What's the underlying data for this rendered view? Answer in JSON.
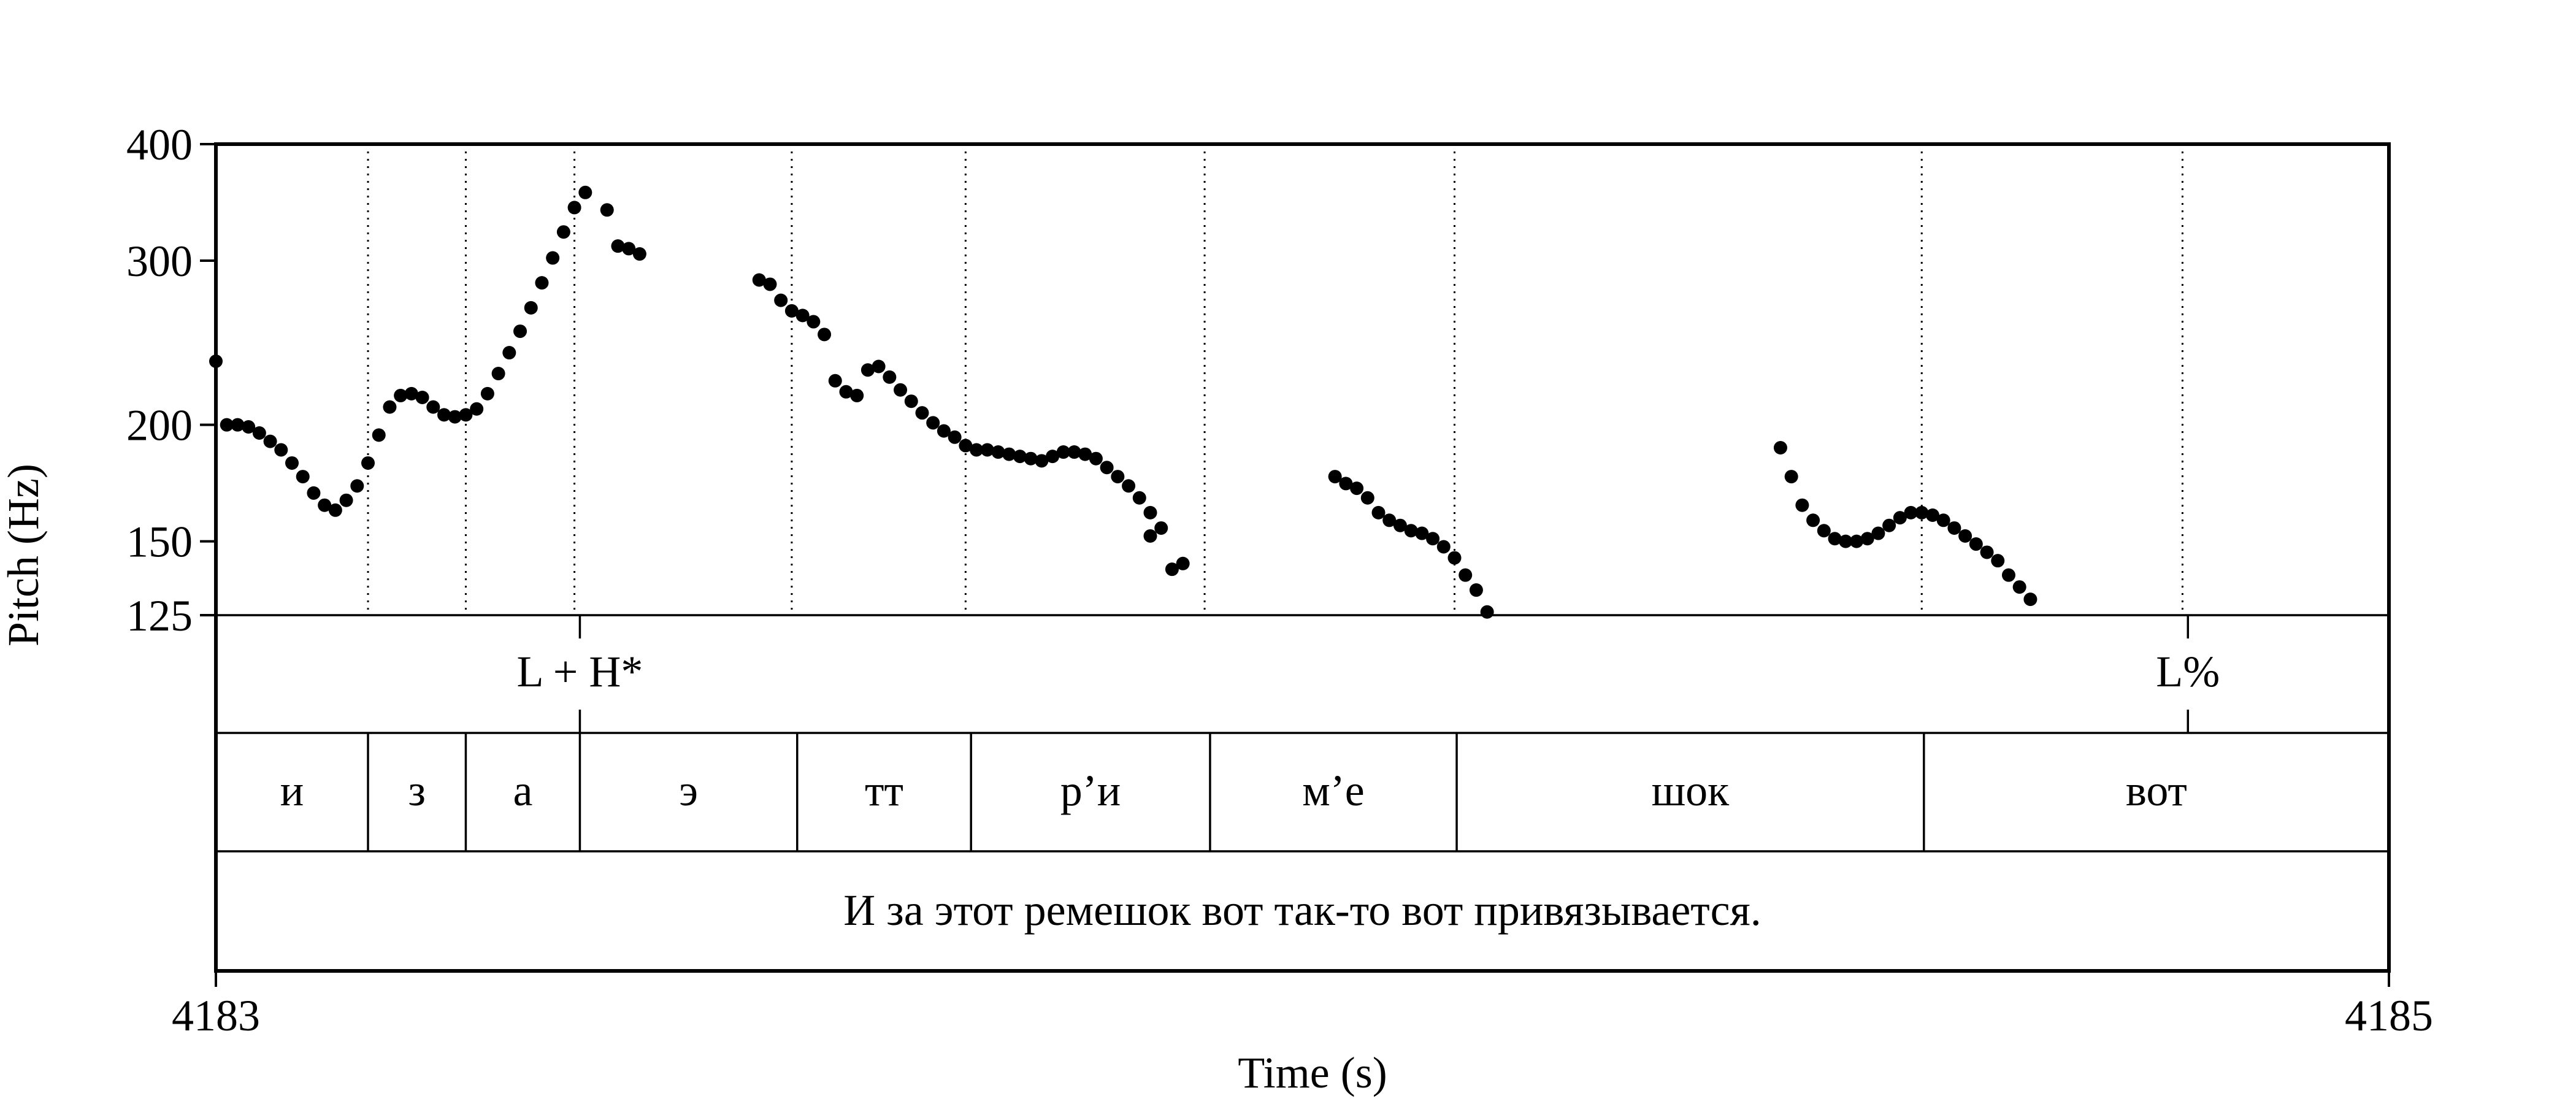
{
  "chart_data": {
    "type": "scatter",
    "ylabel": "Pitch (Hz)",
    "xlabel": "Time (s)",
    "xlim": [
      4183,
      4185
    ],
    "ylim": [
      125,
      400
    ],
    "y_scale": "log",
    "y_ticks": [
      125,
      150,
      200,
      300,
      400
    ],
    "x_ticks": [
      4183,
      4185
    ],
    "grid": false,
    "pitch_segments": [
      [
        [
          4183.0,
          234
        ],
        [
          4183.01,
          200
        ],
        [
          4183.02,
          200
        ],
        [
          4183.03,
          199
        ],
        [
          4183.04,
          196
        ],
        [
          4183.05,
          192
        ],
        [
          4183.06,
          188
        ],
        [
          4183.07,
          182
        ],
        [
          4183.08,
          176
        ],
        [
          4183.09,
          169
        ],
        [
          4183.1,
          164
        ],
        [
          4183.11,
          162
        ],
        [
          4183.12,
          166
        ],
        [
          4183.13,
          172
        ],
        [
          4183.14,
          182
        ],
        [
          4183.15,
          195
        ],
        [
          4183.16,
          209
        ],
        [
          4183.17,
          215
        ],
        [
          4183.18,
          216
        ],
        [
          4183.19,
          214
        ],
        [
          4183.2,
          209
        ],
        [
          4183.21,
          205
        ],
        [
          4183.22,
          204
        ],
        [
          4183.23,
          205
        ],
        [
          4183.24,
          208
        ],
        [
          4183.25,
          216
        ],
        [
          4183.26,
          227
        ],
        [
          4183.27,
          239
        ],
        [
          4183.28,
          252
        ],
        [
          4183.29,
          267
        ],
        [
          4183.3,
          284
        ],
        [
          4183.31,
          302
        ],
        [
          4183.32,
          322
        ],
        [
          4183.33,
          342
        ],
        [
          4183.34,
          355
        ],
        [
          4183.36,
          340
        ],
        [
          4183.37,
          311
        ],
        [
          4183.38,
          309
        ],
        [
          4183.39,
          305
        ]
      ],
      [
        [
          4183.5,
          286
        ],
        [
          4183.51,
          283
        ],
        [
          4183.52,
          272
        ],
        [
          4183.53,
          265
        ],
        [
          4183.54,
          262
        ],
        [
          4183.55,
          258
        ],
        [
          4183.56,
          250
        ],
        [
          4183.57,
          223
        ],
        [
          4183.58,
          217
        ],
        [
          4183.59,
          215
        ],
        [
          4183.6,
          229
        ],
        [
          4183.61,
          231
        ],
        [
          4183.62,
          225
        ],
        [
          4183.63,
          218
        ],
        [
          4183.64,
          212
        ],
        [
          4183.65,
          206
        ],
        [
          4183.66,
          201
        ],
        [
          4183.67,
          197
        ],
        [
          4183.68,
          194
        ],
        [
          4183.69,
          190
        ],
        [
          4183.7,
          188
        ],
        [
          4183.71,
          188
        ],
        [
          4183.72,
          187
        ],
        [
          4183.73,
          186
        ],
        [
          4183.74,
          185
        ],
        [
          4183.75,
          184
        ],
        [
          4183.76,
          183
        ],
        [
          4183.77,
          185
        ],
        [
          4183.78,
          187
        ],
        [
          4183.79,
          187
        ],
        [
          4183.8,
          186
        ],
        [
          4183.81,
          184
        ],
        [
          4183.82,
          180
        ],
        [
          4183.83,
          176
        ],
        [
          4183.84,
          172
        ],
        [
          4183.85,
          167
        ],
        [
          4183.86,
          161
        ]
      ],
      [
        [
          4183.86,
          152
        ],
        [
          4183.87,
          155
        ],
        [
          4183.88,
          140
        ],
        [
          4183.89,
          142
        ]
      ],
      [
        [
          4184.03,
          176
        ],
        [
          4184.04,
          173
        ],
        [
          4184.05,
          171
        ],
        [
          4184.06,
          167
        ],
        [
          4184.07,
          161
        ],
        [
          4184.08,
          158
        ],
        [
          4184.09,
          156
        ],
        [
          4184.1,
          154
        ],
        [
          4184.11,
          153
        ],
        [
          4184.12,
          151
        ],
        [
          4184.13,
          148
        ],
        [
          4184.14,
          144
        ],
        [
          4184.15,
          138
        ],
        [
          4184.16,
          133
        ],
        [
          4184.17,
          126
        ]
      ],
      [
        [
          4184.44,
          189
        ],
        [
          4184.45,
          176
        ],
        [
          4184.46,
          164
        ],
        [
          4184.47,
          158
        ],
        [
          4184.48,
          154
        ],
        [
          4184.49,
          151
        ],
        [
          4184.5,
          150
        ],
        [
          4184.51,
          150
        ],
        [
          4184.52,
          151
        ],
        [
          4184.53,
          153
        ],
        [
          4184.54,
          156
        ],
        [
          4184.55,
          159
        ],
        [
          4184.56,
          161
        ],
        [
          4184.57,
          161
        ],
        [
          4184.58,
          160
        ],
        [
          4184.59,
          158
        ],
        [
          4184.6,
          155
        ],
        [
          4184.61,
          152
        ],
        [
          4184.62,
          149
        ],
        [
          4184.63,
          146
        ],
        [
          4184.64,
          143
        ],
        [
          4184.65,
          138
        ],
        [
          4184.66,
          134
        ],
        [
          4184.67,
          130
        ]
      ]
    ],
    "boundaries": [
      4183.14,
      4183.23,
      4183.33,
      4183.53,
      4183.69,
      4183.91,
      4184.14,
      4184.57,
      4184.81
    ],
    "tone_tier": [
      {
        "time": 4183.335,
        "label": "L + H*"
      },
      {
        "time": 4184.815,
        "label": "L%"
      }
    ],
    "word_tier": [
      {
        "start": 4183.0,
        "end": 4183.14,
        "label": "и"
      },
      {
        "start": 4183.14,
        "end": 4183.23,
        "label": "з"
      },
      {
        "start": 4183.23,
        "end": 4183.335,
        "label": "а"
      },
      {
        "start": 4183.335,
        "end": 4183.535,
        "label": "э"
      },
      {
        "start": 4183.535,
        "end": 4183.695,
        "label": "тт"
      },
      {
        "start": 4183.695,
        "end": 4183.915,
        "label": "р’и"
      },
      {
        "start": 4183.915,
        "end": 4184.142,
        "label": "м’е"
      },
      {
        "start": 4184.142,
        "end": 4184.572,
        "label": "шок"
      },
      {
        "start": 4184.572,
        "end": 4185.0,
        "label": "вот"
      }
    ],
    "sentence_tier": [
      {
        "start": 4183.0,
        "end": 4185.0,
        "label": "И за этот ремешок вот так-то вот привязывается."
      }
    ]
  }
}
